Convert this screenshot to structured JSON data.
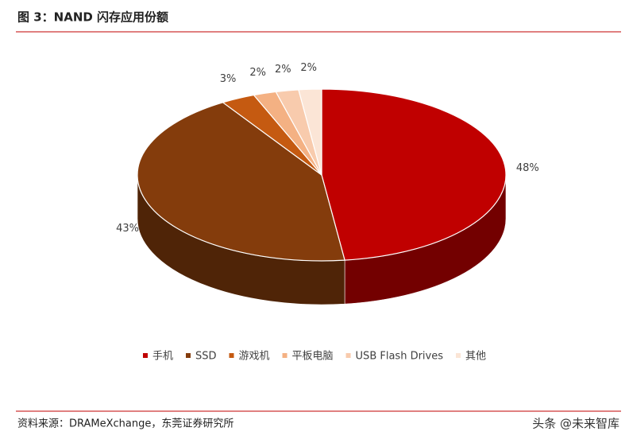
{
  "chart_data": {
    "type": "pie",
    "title": "图 3：NAND 闪存应用份额",
    "categories": [
      "手机",
      "SSD",
      "游戏机",
      "平板电脑",
      "USB Flash Drives",
      "其他"
    ],
    "values": [
      48,
      43,
      3,
      2,
      2,
      2
    ],
    "value_labels": [
      "48%",
      "43%",
      "3%",
      "2%",
      "2%",
      "2%"
    ],
    "colors": [
      "#c00000",
      "#843c0c",
      "#c55a11",
      "#f4b183",
      "#f8cbad",
      "#fbe5d6"
    ],
    "legend": "bottom",
    "source": "资料来源：DRAMeXchange，东莞证券研究所",
    "watermark": "头条 @未来智库"
  }
}
